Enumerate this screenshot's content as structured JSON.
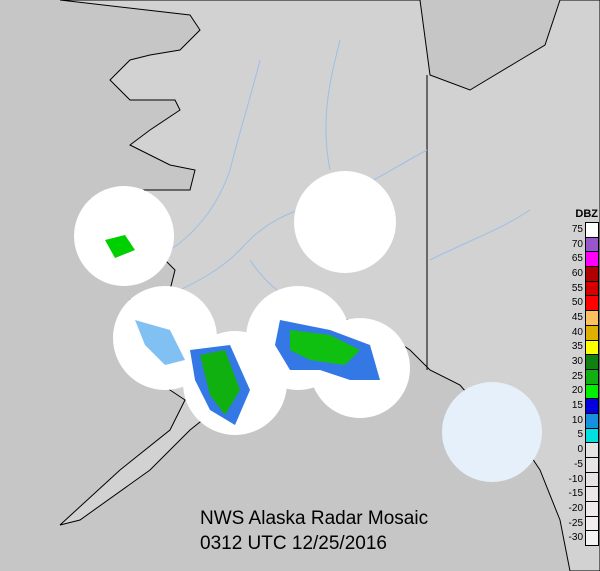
{
  "title": "NWS Alaska Radar Mosaic",
  "timestamp": "0312 UTC 12/25/2016",
  "legend": {
    "unit": "DBZ",
    "entries": [
      {
        "value": "75",
        "color": "#ffffff"
      },
      {
        "value": "70",
        "color": "#9955cc"
      },
      {
        "value": "65",
        "color": "#ff00ff"
      },
      {
        "value": "60",
        "color": "#b00000"
      },
      {
        "value": "55",
        "color": "#d40000"
      },
      {
        "value": "50",
        "color": "#ff0000"
      },
      {
        "value": "45",
        "color": "#ffc060"
      },
      {
        "value": "40",
        "color": "#e0b000"
      },
      {
        "value": "35",
        "color": "#ffff00"
      },
      {
        "value": "30",
        "color": "#108010"
      },
      {
        "value": "25",
        "color": "#10b010"
      },
      {
        "value": "20",
        "color": "#00ee00"
      },
      {
        "value": "15",
        "color": "#0000e0"
      },
      {
        "value": "10",
        "color": "#1890e0"
      },
      {
        "value": "5",
        "color": "#00e0e0"
      },
      {
        "value": "0",
        "color": "#e4e4e4"
      },
      {
        "value": "-5",
        "color": "#e8e4e8"
      },
      {
        "value": "-10",
        "color": "#e4e4e4"
      },
      {
        "value": "-15",
        "color": "#eae6ea"
      },
      {
        "value": "-20",
        "color": "#eeeaee"
      },
      {
        "value": "-25",
        "color": "#f0eef0"
      },
      {
        "value": "-30",
        "color": "#f4f2f4"
      }
    ]
  },
  "colors": {
    "background": "#c6c6c6",
    "land": "#d2d2d2",
    "rivers": "#9dbfe6",
    "radar_coverage": "#ffffff",
    "border": "#000000"
  }
}
